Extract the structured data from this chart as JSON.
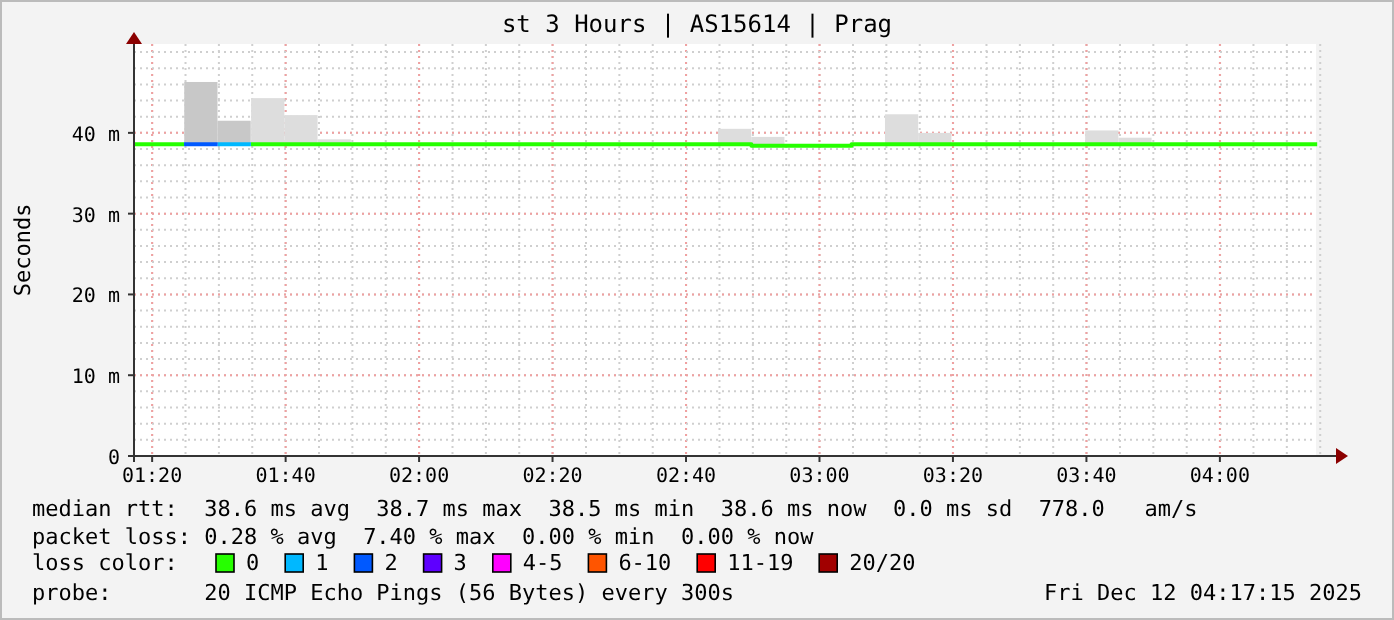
{
  "chart_data": {
    "type": "step",
    "title": "st 3 Hours | AS15614 | Prag",
    "ylabel": "Seconds",
    "xlim": [
      1.288,
      4.29
    ],
    "ylim": [
      0,
      51
    ],
    "xticks": [
      {
        "value": 1.3333,
        "label": "01:20"
      },
      {
        "value": 1.6667,
        "label": "01:40"
      },
      {
        "value": 2,
        "label": "02:00"
      },
      {
        "value": 2.3333,
        "label": "02:20"
      },
      {
        "value": 2.6667,
        "label": "02:40"
      },
      {
        "value": 3,
        "label": "03:00"
      },
      {
        "value": 3.3333,
        "label": "03:20"
      },
      {
        "value": 3.6667,
        "label": "03:40"
      },
      {
        "value": 4,
        "label": "04:00"
      }
    ],
    "yticks": [
      {
        "value": 0,
        "label": "0"
      },
      {
        "value": 10,
        "label": "10 m"
      },
      {
        "value": 20,
        "label": "20 m"
      },
      {
        "value": 30,
        "label": "30 m"
      },
      {
        "value": 40,
        "label": "40 m"
      }
    ],
    "grid": true,
    "legend": "bottom",
    "legend_title": "loss color:",
    "series": [
      {
        "type": "bar",
        "color": "#c8c8c8",
        "x": [
          1.455,
          1.538
        ],
        "base": [
          38.6,
          38.6
        ],
        "values": [
          7.7,
          2.9
        ]
      },
      {
        "type": "bar",
        "color": "#dddddd",
        "x": [
          1.622,
          1.705,
          1.788,
          2.788,
          2.871,
          3.205,
          3.288,
          3.705,
          3.788
        ],
        "base": [
          38.6,
          38.6,
          38.6,
          38.6,
          38.4,
          38.6,
          38.6,
          38.6,
          38.6
        ],
        "values": [
          5.7,
          3.6,
          0.6,
          1.9,
          1.1,
          3.7,
          1.4,
          1.7,
          0.8
        ]
      },
      {
        "name": "0",
        "color": "#26ff00",
        "x": [
          1.288,
          1.413,
          1.58,
          2.83,
          3.08,
          4.243
        ],
        "values": [
          38.6,
          null,
          38.6,
          38.4,
          38.6,
          38.6
        ]
      },
      {
        "name": "1",
        "color": "#00b8ff",
        "x": [
          1.497,
          1.58
        ],
        "values": [
          38.6,
          38.6
        ]
      },
      {
        "name": "2",
        "color": "#0059ff",
        "x": [
          1.413,
          1.497
        ],
        "values": [
          38.6,
          38.6
        ]
      },
      {
        "name": "3",
        "color": "#5e00ff"
      },
      {
        "name": "4-5",
        "color": "#ff00ff"
      },
      {
        "name": "6-10",
        "color": "#ff5500"
      },
      {
        "name": "11-19",
        "color": "#ff0000"
      },
      {
        "name": "20/20",
        "color": "#a10000"
      }
    ],
    "annotations": [
      "median rtt:  38.6 ms avg  38.7 ms max  38.5 ms min  38.6 ms now  0.0 ms sd  778.0   am/s",
      "packet loss: 0.28 % avg  7.40 % max  0.00 % min  0.00 % now",
      "probe:       20 ICMP Echo Pings (56 Bytes) every 300s",
      "Fri Dec 12 04:17:15 2025"
    ]
  }
}
